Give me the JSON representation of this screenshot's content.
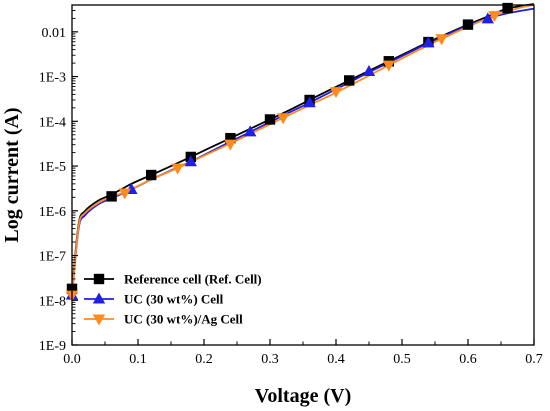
{
  "chart_data": {
    "type": "line",
    "xlabel": "Voltage (V)",
    "ylabel": "Log current (A)",
    "xlim": [
      0.0,
      0.7
    ],
    "ylim_log10": [
      -9,
      -1.4
    ],
    "y_scale": "log",
    "grid": false,
    "legend_position": "bottom-left",
    "x_ticks": [
      {
        "value": 0.0,
        "label": "0.0"
      },
      {
        "value": 0.1,
        "label": "0.1"
      },
      {
        "value": 0.2,
        "label": "0.2"
      },
      {
        "value": 0.3,
        "label": "0.3"
      },
      {
        "value": 0.4,
        "label": "0.4"
      },
      {
        "value": 0.5,
        "label": "0.5"
      },
      {
        "value": 0.6,
        "label": "0.6"
      },
      {
        "value": 0.7,
        "label": "0.7"
      }
    ],
    "y_ticks": [
      {
        "value": 1e-09,
        "label": "1E-9"
      },
      {
        "value": 1e-08,
        "label": "1E-8"
      },
      {
        "value": 1e-07,
        "label": "1E-7"
      },
      {
        "value": 1e-06,
        "label": "1E-6"
      },
      {
        "value": 1e-05,
        "label": "1E-5"
      },
      {
        "value": 0.0001,
        "label": "1E-4"
      },
      {
        "value": 0.001,
        "label": "1E-3"
      },
      {
        "value": 0.01,
        "label": "0.01"
      }
    ],
    "series": [
      {
        "name": "Reference cell (Ref. Cell)",
        "color": "#000000",
        "marker": "square",
        "x": [
          0.0,
          0.01,
          0.02,
          0.04,
          0.06,
          0.09,
          0.12,
          0.15,
          0.18,
          0.21,
          0.24,
          0.27,
          0.3,
          0.33,
          0.36,
          0.39,
          0.42,
          0.45,
          0.48,
          0.51,
          0.54,
          0.57,
          0.6,
          0.63,
          0.66,
          0.7
        ],
        "y": [
          1.6e-08,
          5e-07,
          1e-06,
          1.7e-06,
          2.3e-06,
          4e-06,
          6.3e-06,
          1e-05,
          1.6e-05,
          2.6e-05,
          4.2e-05,
          6.8e-05,
          0.00011,
          0.00018,
          0.0003,
          0.0005,
          0.00082,
          0.00135,
          0.0022,
          0.0036,
          0.0059,
          0.0093,
          0.0145,
          0.022,
          0.033,
          0.042
        ],
        "marker_x": [
          0.0,
          0.06,
          0.12,
          0.18,
          0.24,
          0.3,
          0.36,
          0.42,
          0.48,
          0.54,
          0.6,
          0.66
        ],
        "marker_y": [
          1.8e-08,
          2.1e-06,
          6.3e-06,
          1.6e-05,
          4.2e-05,
          0.00011,
          0.0003,
          0.00082,
          0.0022,
          0.0059,
          0.0145,
          0.034
        ]
      },
      {
        "name": "UC (30 wt%) Cell",
        "color": "#1f1fe6",
        "marker": "triangle-up",
        "x": [
          0.0,
          0.01,
          0.02,
          0.04,
          0.06,
          0.09,
          0.12,
          0.15,
          0.18,
          0.21,
          0.24,
          0.27,
          0.3,
          0.33,
          0.36,
          0.39,
          0.42,
          0.45,
          0.48,
          0.51,
          0.54,
          0.57,
          0.6,
          0.63,
          0.66,
          0.7
        ],
        "y": [
          1.2e-08,
          4e-07,
          8e-07,
          1.4e-06,
          1.9e-06,
          3e-06,
          5e-06,
          8e-06,
          1.25e-05,
          2.1e-05,
          3.5e-05,
          5.8e-05,
          9.6e-05,
          0.00016,
          0.00026,
          0.00044,
          0.00074,
          0.00125,
          0.00205,
          0.0034,
          0.0056,
          0.0089,
          0.014,
          0.02,
          0.026,
          0.033
        ],
        "marker_x": [
          0.0,
          0.09,
          0.18,
          0.27,
          0.36,
          0.45,
          0.54,
          0.63
        ],
        "marker_y": [
          1.3e-08,
          3e-06,
          1.25e-05,
          5.8e-05,
          0.00026,
          0.0013,
          0.0057,
          0.0195
        ]
      },
      {
        "name": "UC (30 wt%)/Ag Cell",
        "color": "#ff8a1f",
        "marker": "triangle-down",
        "x": [
          0.0,
          0.01,
          0.02,
          0.04,
          0.06,
          0.08,
          0.12,
          0.16,
          0.2,
          0.24,
          0.28,
          0.32,
          0.36,
          0.4,
          0.44,
          0.48,
          0.52,
          0.56,
          0.6,
          0.64,
          0.68,
          0.7
        ],
        "y": [
          1.3e-08,
          4.5e-07,
          9e-07,
          1.5e-06,
          2.1e-06,
          2.6e-06,
          5e-06,
          9e-06,
          1.7e-05,
          3.2e-05,
          6.2e-05,
          0.00012,
          0.00023,
          0.00044,
          0.00088,
          0.0018,
          0.0036,
          0.007,
          0.013,
          0.023,
          0.035,
          0.04
        ],
        "marker_x": [
          0.0,
          0.08,
          0.16,
          0.24,
          0.32,
          0.4,
          0.48,
          0.56,
          0.64
        ],
        "marker_y": [
          1.3e-08,
          2.5e-06,
          9e-06,
          3.1e-05,
          0.00012,
          0.00046,
          0.0018,
          0.007,
          0.023
        ]
      }
    ]
  }
}
